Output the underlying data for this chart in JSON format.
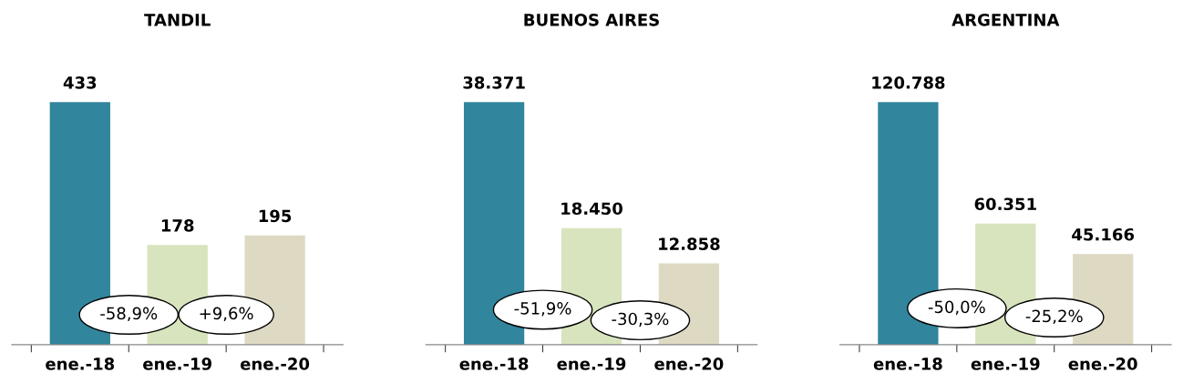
{
  "chart_data": [
    {
      "type": "bar",
      "title": "TANDIL",
      "categories": [
        "ene.-18",
        "ene.-19",
        "ene.-20"
      ],
      "values": [
        433,
        178,
        195
      ],
      "value_labels": [
        "433",
        "178",
        "195"
      ],
      "colors": [
        "#31859c",
        "#d7e4bd",
        "#ddd9c3"
      ],
      "annotations": [
        "-58,9%",
        "+9,6%"
      ]
    },
    {
      "type": "bar",
      "title": "BUENOS AIRES",
      "categories": [
        "ene.-18",
        "ene.-19",
        "ene.-20"
      ],
      "values": [
        38371,
        18450,
        12858
      ],
      "value_labels": [
        "38.371",
        "18.450",
        "12.858"
      ],
      "colors": [
        "#31859c",
        "#d7e4bd",
        "#ddd9c3"
      ],
      "annotations": [
        "-51,9%",
        "-30,3%"
      ]
    },
    {
      "type": "bar",
      "title": "ARGENTINA",
      "categories": [
        "ene.-18",
        "ene.-19",
        "ene.-20"
      ],
      "values": [
        120788,
        60351,
        45166
      ],
      "value_labels": [
        "120.788",
        "60.351",
        "45.166"
      ],
      "colors": [
        "#31859c",
        "#d7e4bd",
        "#ddd9c3"
      ],
      "annotations": [
        "-50,0%",
        "-25,2%"
      ]
    }
  ]
}
